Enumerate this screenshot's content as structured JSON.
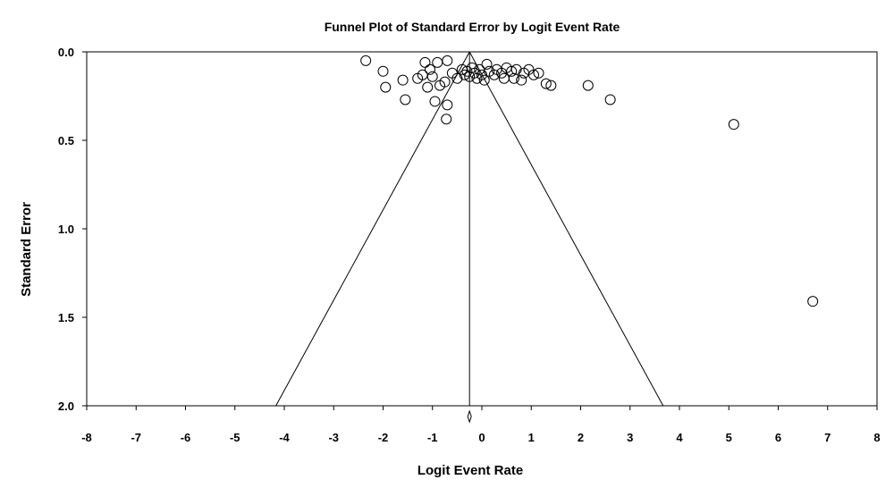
{
  "chart_data": {
    "type": "scatter",
    "title": "Funnel Plot of Standard Error by Logit Event Rate",
    "xlabel": "Logit Event Rate",
    "ylabel": "Standard Error",
    "xlim": [
      -8,
      8
    ],
    "ylim": [
      0,
      2
    ],
    "y_reversed": true,
    "grid": false,
    "legend": "none",
    "x_ticks": [
      "-8",
      "-7",
      "-6",
      "-5",
      "-4",
      "-3",
      "-2",
      "-1",
      "0",
      "1",
      "2",
      "3",
      "4",
      "5",
      "6",
      "7",
      "8"
    ],
    "y_ticks": [
      "0.0",
      "0.5",
      "1.0",
      "1.5",
      "2.0"
    ],
    "pooled_estimate": -0.25,
    "funnel": {
      "apex": [
        -0.25,
        0.0
      ],
      "left_base": [
        -4.17,
        2.0
      ],
      "right_base": [
        3.67,
        2.0
      ]
    },
    "points": [
      {
        "x": -2.35,
        "y": 0.05
      },
      {
        "x": -2.0,
        "y": 0.11
      },
      {
        "x": -1.95,
        "y": 0.2
      },
      {
        "x": -1.6,
        "y": 0.16
      },
      {
        "x": -1.55,
        "y": 0.27
      },
      {
        "x": -1.3,
        "y": 0.15
      },
      {
        "x": -1.2,
        "y": 0.13
      },
      {
        "x": -1.15,
        "y": 0.06
      },
      {
        "x": -1.1,
        "y": 0.2
      },
      {
        "x": -1.05,
        "y": 0.1
      },
      {
        "x": -1.0,
        "y": 0.14
      },
      {
        "x": -0.95,
        "y": 0.28
      },
      {
        "x": -0.9,
        "y": 0.06
      },
      {
        "x": -0.85,
        "y": 0.19
      },
      {
        "x": -0.75,
        "y": 0.17
      },
      {
        "x": -0.7,
        "y": 0.05
      },
      {
        "x": -0.7,
        "y": 0.3
      },
      {
        "x": -0.72,
        "y": 0.38
      },
      {
        "x": -0.6,
        "y": 0.12
      },
      {
        "x": -0.5,
        "y": 0.15
      },
      {
        "x": -0.4,
        "y": 0.1
      },
      {
        "x": -0.35,
        "y": 0.13
      },
      {
        "x": -0.3,
        "y": 0.11
      },
      {
        "x": -0.25,
        "y": 0.14
      },
      {
        "x": -0.2,
        "y": 0.09
      },
      {
        "x": -0.15,
        "y": 0.12
      },
      {
        "x": -0.1,
        "y": 0.15
      },
      {
        "x": -0.05,
        "y": 0.1
      },
      {
        "x": 0.0,
        "y": 0.13
      },
      {
        "x": 0.05,
        "y": 0.16
      },
      {
        "x": 0.1,
        "y": 0.07
      },
      {
        "x": 0.15,
        "y": 0.11
      },
      {
        "x": 0.25,
        "y": 0.13
      },
      {
        "x": 0.3,
        "y": 0.1
      },
      {
        "x": 0.4,
        "y": 0.12
      },
      {
        "x": 0.45,
        "y": 0.15
      },
      {
        "x": 0.5,
        "y": 0.09
      },
      {
        "x": 0.6,
        "y": 0.11
      },
      {
        "x": 0.65,
        "y": 0.15
      },
      {
        "x": 0.7,
        "y": 0.1
      },
      {
        "x": 0.8,
        "y": 0.16
      },
      {
        "x": 0.85,
        "y": 0.12
      },
      {
        "x": 0.95,
        "y": 0.1
      },
      {
        "x": 1.05,
        "y": 0.13
      },
      {
        "x": 1.15,
        "y": 0.12
      },
      {
        "x": 1.3,
        "y": 0.18
      },
      {
        "x": 1.4,
        "y": 0.19
      },
      {
        "x": 2.15,
        "y": 0.19
      },
      {
        "x": 2.6,
        "y": 0.27
      },
      {
        "x": 5.1,
        "y": 0.41
      },
      {
        "x": 6.7,
        "y": 1.41
      }
    ]
  }
}
